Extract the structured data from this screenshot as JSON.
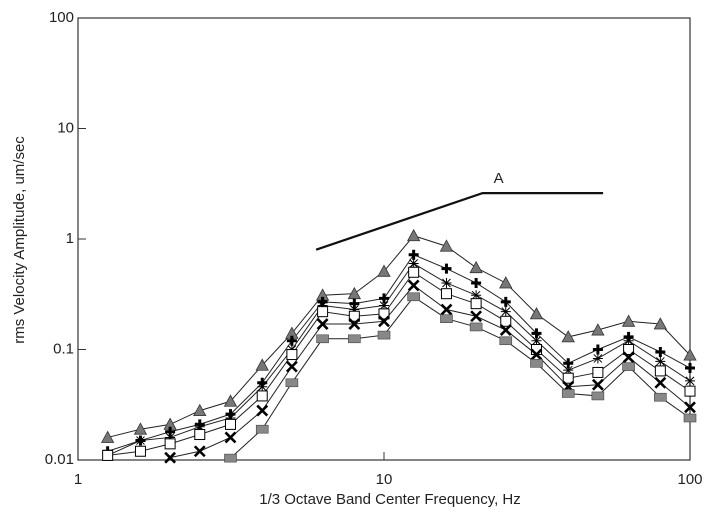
{
  "chart_data": {
    "type": "line",
    "ylabel": "rms Velocity Amplitude, um/sec",
    "xlabel": "1/3 Octave Band Center Frequency, Hz",
    "log_x": true,
    "log_y": true,
    "xlim": [
      1,
      100
    ],
    "xticks": [
      1,
      10,
      100
    ],
    "ylim": [
      0.01,
      100
    ],
    "yticks": [
      0.01,
      0.1,
      1,
      10,
      100
    ],
    "x": [
      1.25,
      1.6,
      2,
      2.5,
      3.15,
      4,
      5,
      6.3,
      8,
      10,
      12.5,
      16,
      20,
      25,
      31.5,
      40,
      50,
      63,
      80,
      100
    ],
    "series": [
      {
        "marker": "triangle",
        "color": "#777777",
        "values": [
          0.016,
          0.019,
          0.021,
          0.028,
          0.034,
          0.072,
          0.14,
          0.31,
          0.32,
          0.51,
          1.07,
          0.86,
          0.55,
          0.4,
          0.21,
          0.13,
          0.15,
          0.18,
          0.17,
          0.089
        ]
      },
      {
        "marker": "plus",
        "color": "#000000",
        "values": [
          0.012,
          0.015,
          0.018,
          0.021,
          0.026,
          0.05,
          0.12,
          0.27,
          0.26,
          0.29,
          0.72,
          0.54,
          0.4,
          0.27,
          0.14,
          0.075,
          0.1,
          0.13,
          0.095,
          0.068
        ]
      },
      {
        "marker": "asterisk",
        "color": "#000000",
        "values": [
          0.011,
          0.015,
          0.016,
          0.02,
          0.024,
          0.046,
          0.1,
          0.25,
          0.23,
          0.25,
          0.6,
          0.4,
          0.31,
          0.22,
          0.12,
          0.065,
          0.083,
          0.12,
          0.078,
          0.052
        ]
      },
      {
        "marker": "square",
        "color": "#000000",
        "values": [
          0.011,
          0.012,
          0.014,
          0.017,
          0.021,
          0.038,
          0.09,
          0.22,
          0.2,
          0.21,
          0.5,
          0.32,
          0.26,
          0.18,
          0.1,
          0.055,
          0.062,
          0.1,
          0.064,
          0.042
        ]
      },
      {
        "marker": "x",
        "color": "#000000",
        "values": [
          null,
          null,
          0.0105,
          0.012,
          0.016,
          0.028,
          0.07,
          0.17,
          0.17,
          0.18,
          0.38,
          0.23,
          0.2,
          0.15,
          0.09,
          0.046,
          0.048,
          0.085,
          0.05,
          0.03
        ]
      },
      {
        "marker": "hatched",
        "color": "#888888",
        "values": [
          null,
          null,
          null,
          null,
          0.0104,
          0.019,
          0.05,
          0.125,
          0.125,
          0.135,
          0.3,
          0.19,
          0.16,
          0.12,
          0.075,
          0.04,
          0.038,
          0.07,
          0.037,
          0.024
        ]
      }
    ],
    "annotation": {
      "text": "A",
      "x": [
        6,
        21,
        52
      ],
      "y": [
        0.8,
        2.6,
        2.6
      ]
    }
  }
}
